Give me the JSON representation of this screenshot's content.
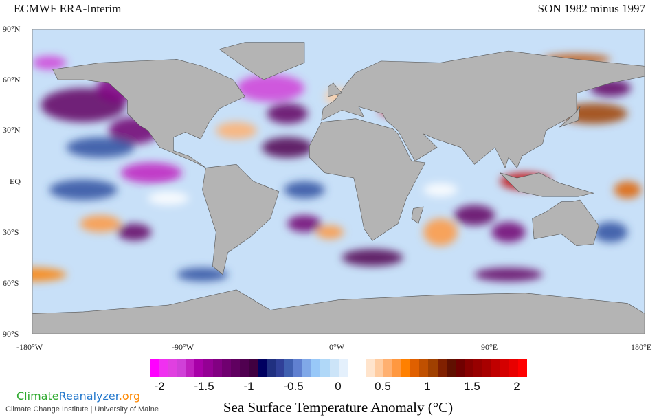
{
  "header": {
    "left_title": "ECMWF ERA-Interim",
    "right_title": "SON 1982 minus 1997"
  },
  "axes": {
    "lat_labels": [
      "90°N",
      "60°N",
      "30°N",
      "EQ",
      "30°S",
      "60°S",
      "90°S"
    ],
    "lon_labels": [
      "-180°W",
      "-90°W",
      "0°W",
      "90°E",
      "180°E"
    ]
  },
  "colorbar": {
    "ticks": [
      "-2",
      "-1.5",
      "-1",
      "-0.5",
      "0",
      "0.5",
      "1",
      "1.5",
      "2"
    ],
    "title": "Sea Surface Temperature Anomaly (°C)",
    "colors": [
      "#ff00ff",
      "#f030f0",
      "#e040e0",
      "#d040d8",
      "#c020c0",
      "#a800a8",
      "#940094",
      "#820082",
      "#700070",
      "#600060",
      "#500050",
      "#400040",
      "#000060",
      "#203080",
      "#304098",
      "#4060b0",
      "#6080d0",
      "#80a8e8",
      "#98c8f8",
      "#b0d8f8",
      "#cce4f8",
      "#e4f0fc",
      "#ffffff",
      "#ffffff",
      "#ffe4cc",
      "#ffcca0",
      "#ffb070",
      "#ff9840",
      "#ff8000",
      "#e06000",
      "#c05000",
      "#a04000",
      "#802000",
      "#601000",
      "#700000",
      "#880000",
      "#980000",
      "#a80000",
      "#c00000",
      "#d40000",
      "#e80000",
      "#ff0000"
    ]
  },
  "logo": {
    "part1": "Climate",
    "part2": "Reanalyzer",
    "part3": ".org",
    "subtitle": "Climate Change Institute | University of Maine",
    "colors": {
      "part1": "#2eaa2e",
      "part2": "#2277cc",
      "part3": "#ff8800"
    }
  }
}
